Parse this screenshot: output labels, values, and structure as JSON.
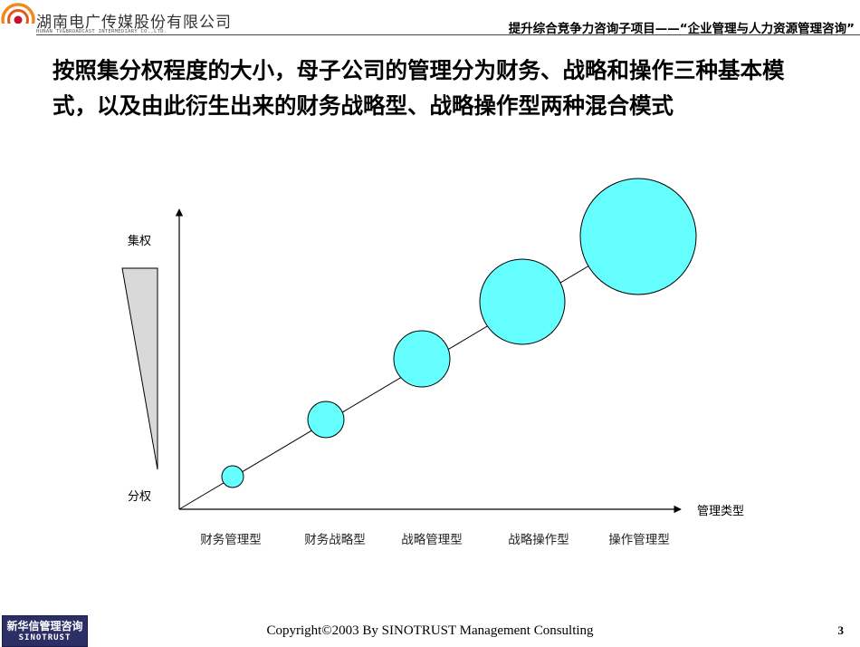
{
  "header": {
    "company_cn": "湖南电广传媒股份有限公司",
    "company_en": "HUNAN TV&BROADCAST INTERMEDIARY CO.,LTD.",
    "project_title": "提升综合竞争力咨询子项目——“企业管理与人力资源管理咨询”"
  },
  "slide": {
    "title": "按照集分权程度的大小，母子公司的管理分为财务、战略和操作三种基本模式，以及由此衍生出来的财务战略型、战略操作型两种混合模式"
  },
  "chart_data": {
    "type": "scatter",
    "title": "",
    "xlabel": "管理类型",
    "ylabel_top": "集权",
    "ylabel_bottom": "分权",
    "categories": [
      "财务管理型",
      "财务战略型",
      "战略管理型",
      "战略操作型",
      "操作管理型"
    ],
    "points": [
      {
        "category": "财务管理型",
        "level": 1,
        "size": 1
      },
      {
        "category": "财务战略型",
        "level": 2,
        "size": 2
      },
      {
        "category": "战略管理型",
        "level": 3,
        "size": 3
      },
      {
        "category": "战略操作型",
        "level": 4,
        "size": 4
      },
      {
        "category": "操作管理型",
        "level": 5,
        "size": 5
      }
    ],
    "trend_line": true,
    "colors": {
      "bubble_fill": "#66ffff",
      "wedge_fill": "#d9d9d9"
    }
  },
  "footer": {
    "copyright": "Copyright©2003 By SINOTRUST Management Consulting",
    "page_number": "3",
    "logo_cn": "新华信管理咨询",
    "logo_en": "SINOTRUST"
  }
}
